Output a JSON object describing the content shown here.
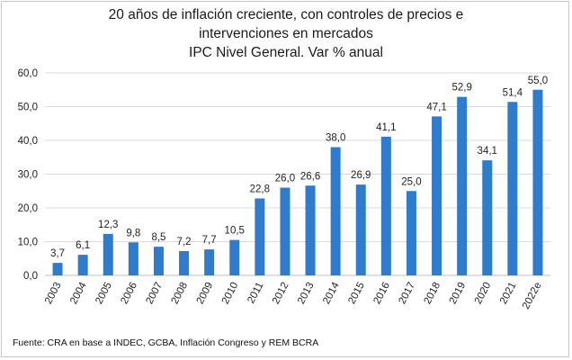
{
  "chart_data": {
    "type": "bar",
    "title_lines": [
      "20 años de inflación creciente, con controles de precios e",
      "intervenciones en mercados",
      "IPC Nivel General. Var % anual"
    ],
    "categories": [
      "2003",
      "2004",
      "2005",
      "2006",
      "2007",
      "2008",
      "2009",
      "2010",
      "2011",
      "2012",
      "2013",
      "2014",
      "2015",
      "2016",
      "2017",
      "2018",
      "2019",
      "2020",
      "2021",
      "2022e"
    ],
    "values": [
      3.7,
      6.1,
      12.3,
      9.8,
      8.5,
      7.2,
      7.7,
      10.5,
      22.8,
      26.0,
      26.6,
      38.0,
      26.9,
      41.1,
      25.0,
      47.1,
      52.9,
      34.1,
      51.4,
      55.0
    ],
    "value_labels": [
      "3,7",
      "6,1",
      "12,3",
      "9,8",
      "8,5",
      "7,2",
      "7,7",
      "10,5",
      "22,8",
      "26,0",
      "26,6",
      "38,0",
      "26,9",
      "41,1",
      "25,0",
      "47,1",
      "52,9",
      "34,1",
      "51,4",
      "55,0"
    ],
    "yticks": [
      0,
      10,
      20,
      30,
      40,
      50,
      60
    ],
    "ytick_labels": [
      "0,0",
      "10,0",
      "20,0",
      "30,0",
      "40,0",
      "50,0",
      "60,0"
    ],
    "ylim": [
      0,
      60
    ],
    "grid": true,
    "xlabel": "",
    "ylabel": "",
    "bar_color": "#2f7bcc",
    "grid_color": "#d9d9d9",
    "source": "Fuente: CRA en base a INDEC, GCBA, Inflación Congreso y REM BCRA"
  }
}
